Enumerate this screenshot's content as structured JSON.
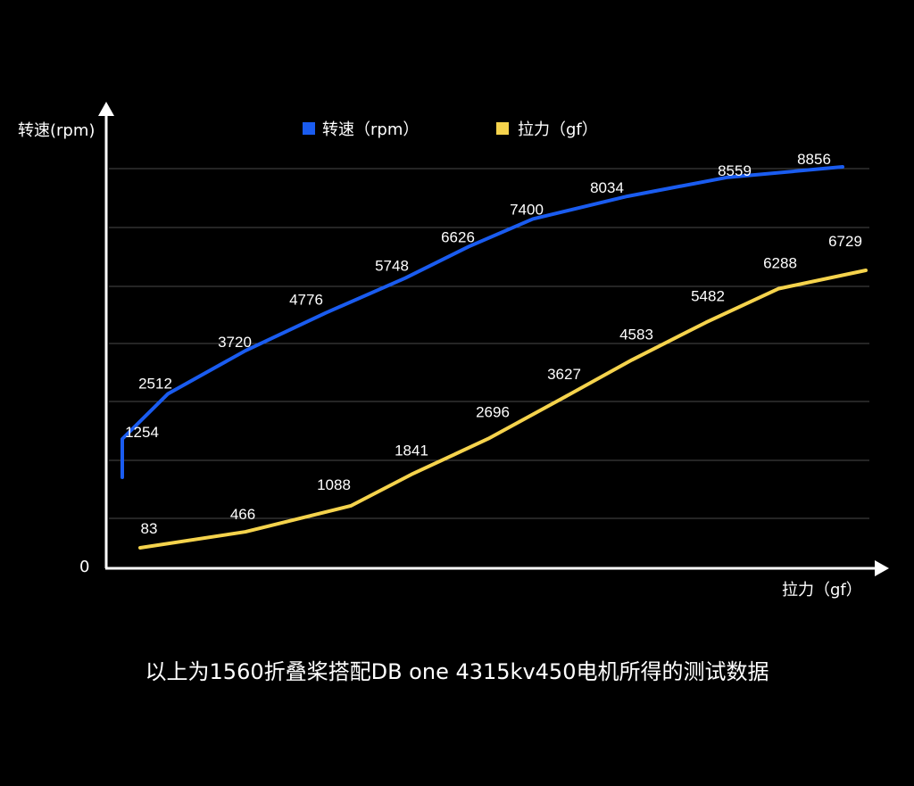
{
  "chart_data": {
    "type": "line",
    "xlabel": "拉力（gf）",
    "ylabel": "转速(rpm)",
    "origin_label": "0",
    "grid": true,
    "legend_position": "top",
    "series": [
      {
        "name": "转速（rpm）",
        "color": "#1a5cf0",
        "values": [
          1254,
          2512,
          3720,
          4776,
          5748,
          6626,
          7400,
          8034,
          8559,
          8856
        ]
      },
      {
        "name": "拉力（gf）",
        "color": "#f5d34c",
        "values": [
          83,
          466,
          1088,
          1841,
          2696,
          3627,
          4583,
          5482,
          6288,
          6729
        ]
      }
    ]
  },
  "caption": "以上为1560折叠桨搭配DB one 4315kv450电机所得的测试数据",
  "colors": {
    "background": "#000000",
    "axis": "#ffffff",
    "grid": "#4a4a4a"
  }
}
